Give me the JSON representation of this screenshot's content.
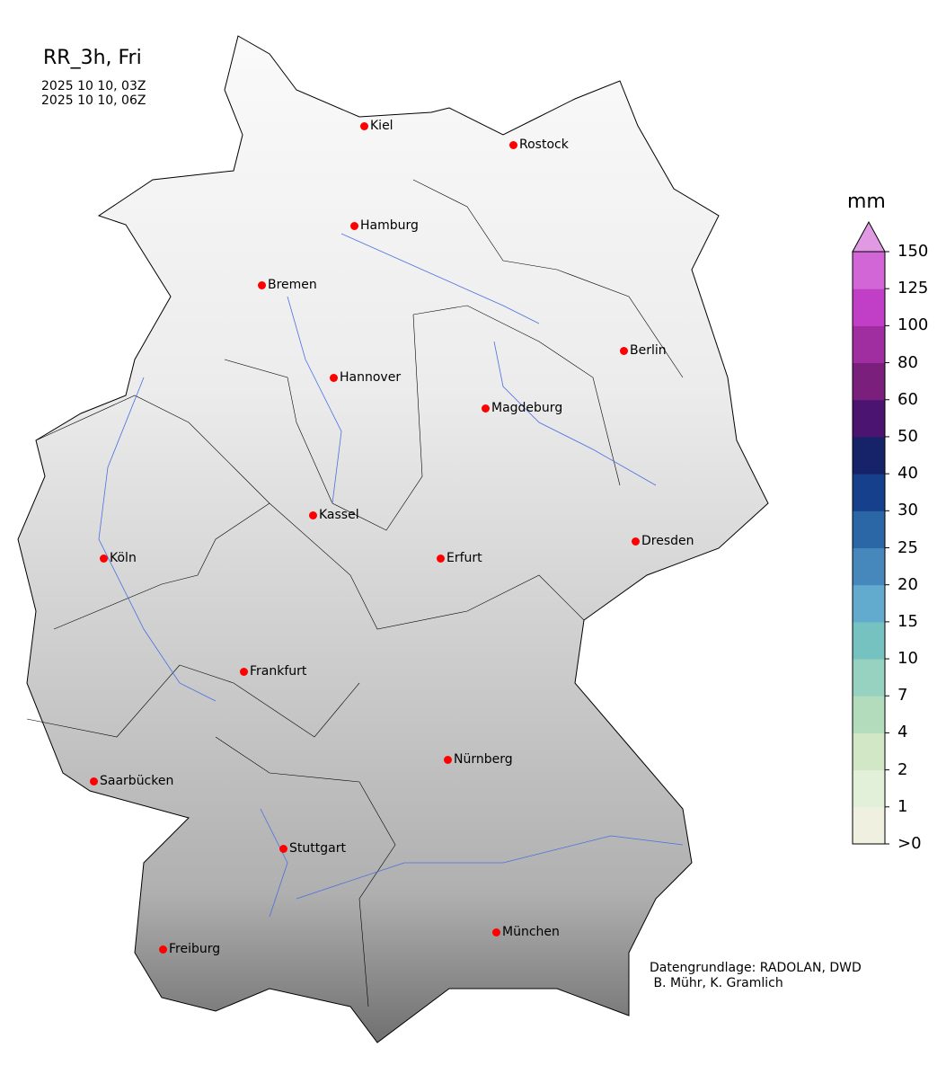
{
  "title": "RR_3h, Fri",
  "time_start": "2025 10 10, 03Z",
  "time_end": "2025 10 10, 06Z",
  "cities": [
    {
      "name": "Kiel"
    },
    {
      "name": "Rostock"
    },
    {
      "name": "Hamburg"
    },
    {
      "name": "Bremen"
    },
    {
      "name": "Berlin"
    },
    {
      "name": "Hannover"
    },
    {
      "name": "Magdeburg"
    },
    {
      "name": "Kassel"
    },
    {
      "name": "Köln"
    },
    {
      "name": "Erfurt"
    },
    {
      "name": "Dresden"
    },
    {
      "name": "Frankfurt"
    },
    {
      "name": "Saarbücken"
    },
    {
      "name": "Nürnberg"
    },
    {
      "name": "Stuttgart"
    },
    {
      "name": "München"
    },
    {
      "name": "Freiburg"
    }
  ],
  "colorbar": {
    "unit": "mm",
    "ticks": [
      ">0",
      "1",
      "2",
      "4",
      "7",
      "10",
      "15",
      "20",
      "25",
      "30",
      "40",
      "50",
      "60",
      "80",
      "100",
      "125",
      "150"
    ],
    "colors": [
      "#f0f0e0",
      "#e2efd9",
      "#d1e7c6",
      "#b3dcbc",
      "#97d2c1",
      "#76c2c1",
      "#62abcf",
      "#4688bb",
      "#2b66a6",
      "#163f8c",
      "#172369",
      "#4a1470",
      "#7a1f7c",
      "#a12ea0",
      "#c13fc6",
      "#d266d6"
    ],
    "extend_color": "#e09ae4"
  },
  "credit_line1": "Datengrundlage: RADOLAN, DWD",
  "credit_line2": " B. Mühr, K. Gramlich"
}
